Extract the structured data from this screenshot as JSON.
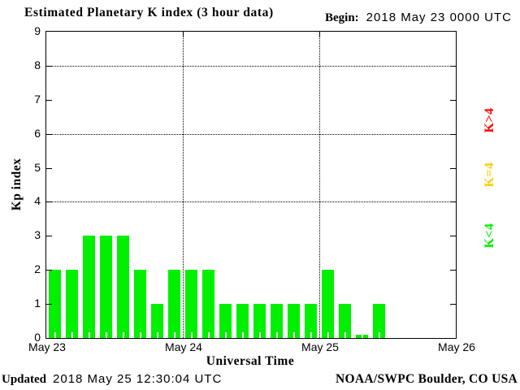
{
  "header": {
    "title": "Estimated Planetary K index (3 hour data)",
    "begin_label": "Begin:",
    "begin_value": "2018 May 23 0000 UTC"
  },
  "footer": {
    "updated_label": "Updated",
    "updated_value": "2018 May 25 12:30:04 UTC",
    "credit": "NOAA/SWPC Boulder, CO USA"
  },
  "legend": {
    "items": [
      {
        "label": "K>4",
        "color": "#ff0000"
      },
      {
        "label": "K=4",
        "color": "#ffcc00"
      },
      {
        "label": "K<4",
        "color": "#00f000"
      }
    ]
  },
  "chart_data": {
    "type": "bar",
    "title": "Estimated Planetary K index (3 hour data)",
    "xlabel": "Universal Time",
    "ylabel": "Kp index",
    "ylim": [
      0,
      9
    ],
    "yticks": [
      0,
      1,
      2,
      3,
      4,
      5,
      6,
      7,
      8,
      9
    ],
    "grid_y_values": [
      4,
      6,
      8
    ],
    "x_tick_labels": [
      "May 23",
      "May 24",
      "May 25",
      "May 26"
    ],
    "hours_per_bar": 3,
    "bars_per_day": 8,
    "bar_color": "#00f000",
    "series": [
      {
        "date": "May 23",
        "values": [
          2,
          2,
          3,
          3,
          3,
          2,
          1,
          2
        ]
      },
      {
        "date": "May 24",
        "values": [
          2,
          2,
          1,
          1,
          1,
          1,
          1,
          1
        ]
      },
      {
        "date": "May 25",
        "values": [
          2,
          1,
          0,
          1
        ]
      }
    ],
    "legend_position": "right",
    "grid": "dotted"
  }
}
